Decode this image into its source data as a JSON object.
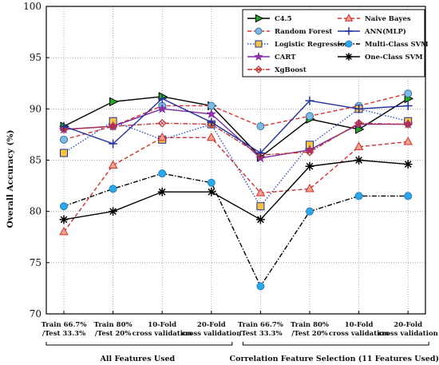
{
  "chart_data": {
    "type": "line",
    "ylabel": "Overall Accuracy (%)",
    "ylim": [
      70,
      100
    ],
    "yticks": [
      70,
      75,
      80,
      85,
      90,
      95,
      100
    ],
    "grid": true,
    "legend_position": "top-right",
    "categories": [
      [
        "Train 66.7%",
        "/Test 33.3%"
      ],
      [
        "Train 80%",
        "/Test 20%"
      ],
      [
        "10-Fold",
        "cross validation"
      ],
      [
        "20-Fold",
        "cross validation"
      ],
      [
        "Train 66.7%",
        "/Test 33.3%"
      ],
      [
        "Train 80%",
        "/Test 20%"
      ],
      [
        "10-Fold",
        "cross validation"
      ],
      [
        "20-Fold",
        "cross validation"
      ]
    ],
    "groups": [
      {
        "label": "All Features Used",
        "from": 0,
        "to": 3
      },
      {
        "label": "Correlation Feature Selection (11 Features Used)",
        "from": 4,
        "to": 7
      }
    ],
    "series": [
      {
        "name": "C4.5",
        "color": "#000000",
        "dash": "",
        "marker": "tri-right",
        "markerFill": "#22aa22",
        "values": [
          88.3,
          90.7,
          91.2,
          90.3,
          85.3,
          89.0,
          88.0,
          91.0
        ]
      },
      {
        "name": "Random Forest",
        "color": "#e03030",
        "dash": "5,3",
        "marker": "circle",
        "markerFill": "#7fb8e0",
        "values": [
          87.0,
          88.3,
          90.3,
          90.3,
          88.3,
          89.3,
          90.3,
          91.5
        ]
      },
      {
        "name": "Logistic Regression",
        "color": "#3050d0",
        "dash": "1.5,2",
        "marker": "square",
        "markerFill": "#f5c542",
        "values": [
          85.7,
          88.8,
          87.0,
          88.5,
          80.5,
          86.5,
          90.0,
          88.8
        ]
      },
      {
        "name": "CART",
        "color": "#7a2aa0",
        "dash": "",
        "marker": "star5",
        "markerFill": "#9a30b0",
        "values": [
          88.0,
          88.3,
          90.0,
          89.5,
          85.2,
          86.0,
          88.5,
          88.5
        ]
      },
      {
        "name": "XgBoost",
        "color": "#c03030",
        "dash": "6,2,1.5,2",
        "marker": "diamond-x",
        "markerFill": "#e84040",
        "values": [
          88.0,
          88.3,
          88.6,
          88.5,
          85.5,
          85.8,
          88.6,
          88.5
        ]
      },
      {
        "name": "Naive Bayes",
        "color": "#d03030",
        "dash": "5,3",
        "marker": "triangle",
        "markerFill": "#f2a28a",
        "values": [
          78.0,
          84.5,
          87.2,
          87.2,
          81.8,
          82.2,
          86.3,
          86.8
        ]
      },
      {
        "name": "ANN(MLP)",
        "color": "#2030a0",
        "dash": "",
        "marker": "plus",
        "markerFill": "#2030a0",
        "values": [
          88.3,
          86.6,
          91.0,
          88.7,
          85.7,
          90.8,
          90.0,
          90.3
        ]
      },
      {
        "name": "Multi-Class SVM",
        "color": "#000000",
        "dash": "6,2,1.5,2",
        "marker": "circle",
        "markerFill": "#2aa8e8",
        "values": [
          80.5,
          82.2,
          83.7,
          82.8,
          72.7,
          80.0,
          81.5,
          81.5
        ]
      },
      {
        "name": "One-Class SVM",
        "color": "#000000",
        "dash": "",
        "marker": "asterisk",
        "markerFill": "#000000",
        "values": [
          79.2,
          80.0,
          81.9,
          81.9,
          79.2,
          84.4,
          85.0,
          84.6
        ]
      }
    ]
  }
}
